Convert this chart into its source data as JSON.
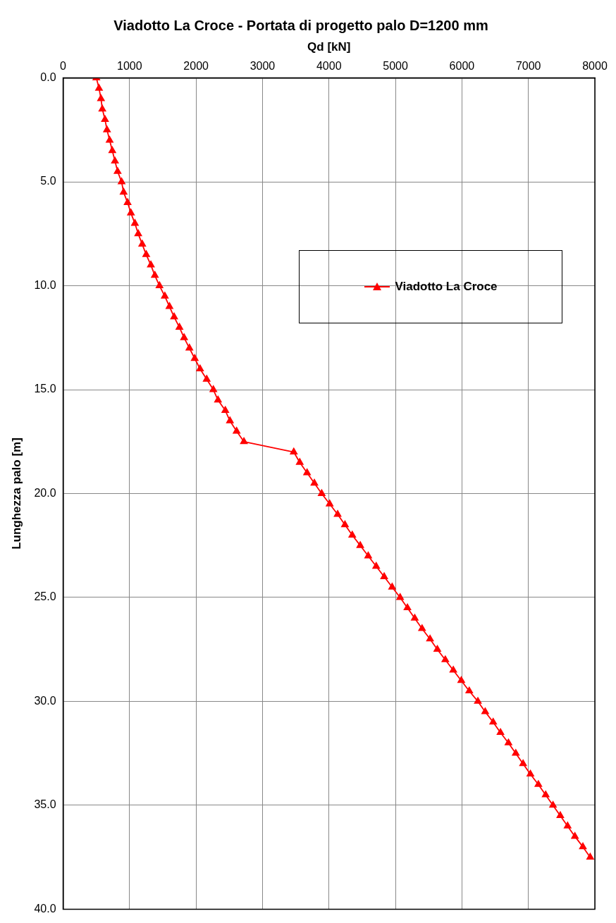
{
  "chart_data": {
    "type": "line",
    "title": "Viadotto La Croce - Portata di progetto palo D=1200 mm",
    "xlabel": "Qd [kN]",
    "ylabel": "Lunghezza palo [m]",
    "xlim": [
      0,
      8000
    ],
    "xticks": [
      0,
      1000,
      2000,
      3000,
      4000,
      5000,
      6000,
      7000,
      8000
    ],
    "ylim": [
      40,
      0
    ],
    "yticks": [
      {
        "value": 0,
        "label": "0.0"
      },
      {
        "value": 5,
        "label": "5.0"
      },
      {
        "value": 10,
        "label": "10.0"
      },
      {
        "value": 15,
        "label": "15.0"
      },
      {
        "value": 20,
        "label": "20.0"
      },
      {
        "value": 25,
        "label": "25.0"
      },
      {
        "value": 30,
        "label": "30.0"
      },
      {
        "value": 35,
        "label": "35.0"
      },
      {
        "value": 40,
        "label": "40.0"
      }
    ],
    "grid": true,
    "legend": "top right",
    "marker": "triangle",
    "line_style": "solid",
    "series": [
      {
        "name": "Viadotto La Croce",
        "color": "#ff0000",
        "x": [
          500,
          540,
          570,
          590,
          630,
          660,
          700,
          740,
          780,
          820,
          880,
          910,
          970,
          1020,
          1080,
          1130,
          1190,
          1250,
          1320,
          1380,
          1450,
          1530,
          1600,
          1670,
          1750,
          1820,
          1900,
          1980,
          2060,
          2160,
          2260,
          2330,
          2440,
          2510,
          2610,
          2720,
          3470,
          3560,
          3670,
          3780,
          3890,
          4010,
          4130,
          4240,
          4350,
          4470,
          4590,
          4710,
          4830,
          4950,
          5070,
          5180,
          5290,
          5400,
          5520,
          5630,
          5750,
          5870,
          5990,
          6110,
          6240,
          6350,
          6470,
          6580,
          6700,
          6810,
          6920,
          7030,
          7150,
          7260,
          7370,
          7480,
          7590,
          7700,
          7820,
          7930
        ],
        "values": [
          0,
          0.5,
          1,
          1.5,
          2,
          2.5,
          3,
          3.5,
          4,
          4.5,
          5,
          5.5,
          6,
          6.5,
          7,
          7.5,
          8,
          8.5,
          9,
          9.5,
          10,
          10.5,
          11,
          11.5,
          12,
          12.5,
          13,
          13.5,
          14,
          14.5,
          15,
          15.5,
          16,
          16.5,
          17,
          17.5,
          18,
          18.5,
          19,
          19.5,
          20,
          20.5,
          21,
          21.5,
          22,
          22.5,
          23,
          23.5,
          24,
          24.5,
          25,
          25.5,
          26,
          26.5,
          27,
          27.5,
          28,
          28.5,
          29,
          29.5,
          30,
          30.5,
          31,
          31.5,
          32,
          32.5,
          33,
          33.5,
          34,
          34.5,
          35,
          35.5,
          36,
          36.5,
          37,
          37.5
        ]
      }
    ]
  }
}
